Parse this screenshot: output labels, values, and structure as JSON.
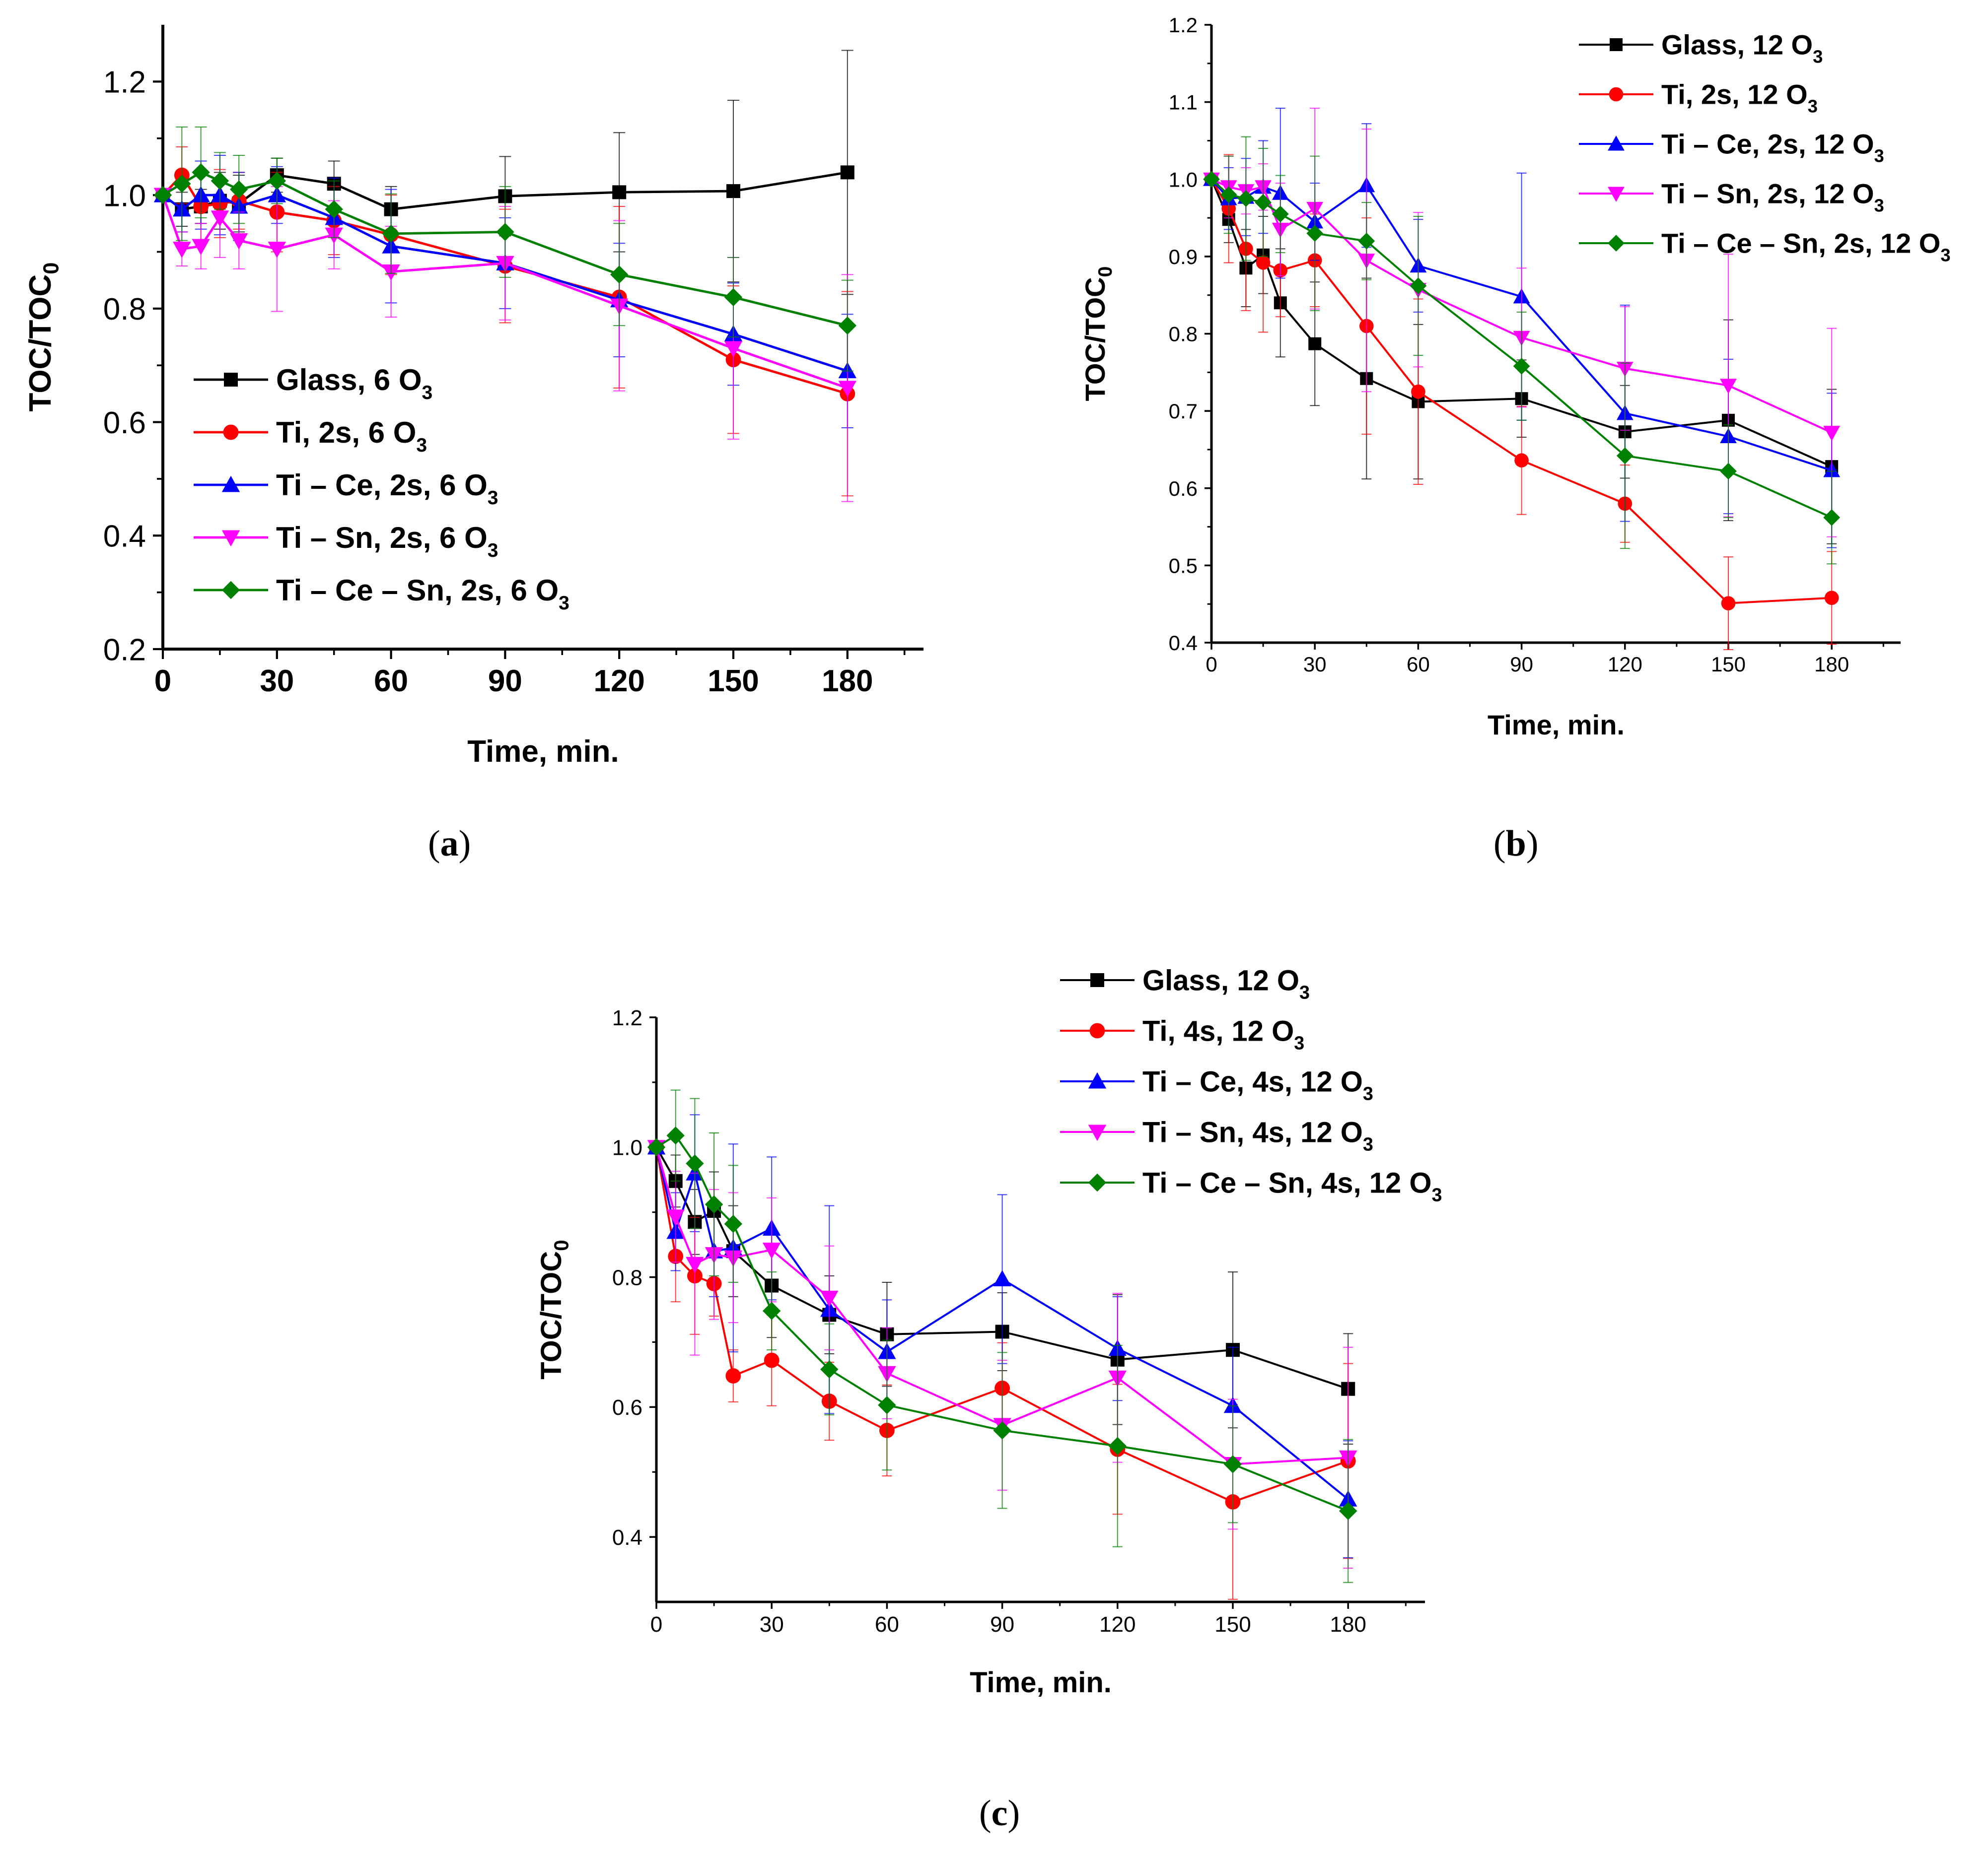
{
  "figure": {
    "captions": [
      {
        "open": "(",
        "letter": "a",
        "close": ")"
      },
      {
        "open": "(",
        "letter": "b",
        "close": ")"
      },
      {
        "open": "(",
        "letter": "c",
        "close": ")"
      }
    ]
  },
  "colors": {
    "black": "#000000",
    "red": "#ff0000",
    "blue": "#0000ff",
    "magenta": "#ff00ff",
    "green": "#008000",
    "axis": "#000000"
  },
  "chart_data": [
    {
      "id": "a",
      "type": "line",
      "xlabel": "Time, min.",
      "ylabel_main": "TOC/TOC",
      "ylabel_sub": "0",
      "xlim": [
        0,
        200
      ],
      "ylim": [
        0.2,
        1.3
      ],
      "xticks": [
        "0",
        "30",
        "60",
        "90",
        "120",
        "150",
        "180"
      ],
      "yticks": [
        "0.2",
        "0.4",
        "0.6",
        "0.8",
        "1.0",
        "1.2"
      ],
      "legend_position": "lower-left",
      "series": [
        {
          "name": "Glass, 6 O",
          "sub": "3",
          "color": "#000000",
          "marker": "square",
          "x": [
            0,
            5,
            10,
            15,
            20,
            30,
            45,
            60,
            90,
            120,
            150,
            180
          ],
          "y": [
            1.0,
            0.975,
            0.98,
            0.99,
            0.985,
            1.035,
            1.02,
            0.975,
            0.998,
            1.005,
            1.007,
            1.04
          ],
          "err": [
            0.0,
            0.03,
            0.03,
            0.05,
            0.05,
            0.03,
            0.04,
            0.04,
            0.07,
            0.105,
            0.16,
            0.215
          ]
        },
        {
          "name": "Ti, 2s, 6 O",
          "sub": "3",
          "color": "#ff0000",
          "marker": "circle",
          "x": [
            0,
            5,
            10,
            15,
            20,
            30,
            45,
            60,
            90,
            120,
            150,
            180
          ],
          "y": [
            1.0,
            1.035,
            0.98,
            0.985,
            0.99,
            0.97,
            0.955,
            0.93,
            0.875,
            0.82,
            0.71,
            0.65
          ],
          "err": [
            0.0,
            0.05,
            0.06,
            0.06,
            0.05,
            0.07,
            0.06,
            0.07,
            0.1,
            0.16,
            0.13,
            0.18
          ]
        },
        {
          "name": "Ti – Ce, 2s, 6 O",
          "sub": "3",
          "color": "#0000ff",
          "marker": "triangle-up",
          "x": [
            0,
            5,
            10,
            15,
            20,
            30,
            45,
            60,
            90,
            120,
            150,
            180
          ],
          "y": [
            1.0,
            0.975,
            1.0,
            1.0,
            0.98,
            1.0,
            0.96,
            0.91,
            0.88,
            0.815,
            0.755,
            0.69
          ],
          "err": [
            0.0,
            0.04,
            0.06,
            0.07,
            0.06,
            0.05,
            0.07,
            0.1,
            0.08,
            0.1,
            0.09,
            0.1
          ]
        },
        {
          "name": "Ti – Sn, 2s, 6 O",
          "sub": "3",
          "color": "#ff00ff",
          "marker": "triangle-down",
          "x": [
            0,
            5,
            10,
            15,
            20,
            30,
            45,
            60,
            90,
            120,
            150,
            180
          ],
          "y": [
            1.0,
            0.905,
            0.91,
            0.96,
            0.92,
            0.905,
            0.93,
            0.865,
            0.88,
            0.805,
            0.73,
            0.66
          ],
          "err": [
            0.0,
            0.03,
            0.04,
            0.07,
            0.05,
            0.11,
            0.06,
            0.08,
            0.1,
            0.15,
            0.16,
            0.2
          ]
        },
        {
          "name": "Ti – Ce – Sn, 2s, 6 O",
          "sub": "3",
          "color": "#008000",
          "marker": "diamond",
          "x": [
            0,
            5,
            10,
            15,
            20,
            30,
            45,
            60,
            90,
            120,
            150,
            180
          ],
          "y": [
            1.0,
            1.02,
            1.04,
            1.025,
            1.01,
            1.025,
            0.975,
            0.932,
            0.935,
            0.86,
            0.82,
            0.77
          ],
          "err": [
            0.0,
            0.1,
            0.08,
            0.05,
            0.06,
            0.04,
            0.05,
            0.07,
            0.08,
            0.09,
            0.07,
            0.08
          ]
        }
      ]
    },
    {
      "id": "b",
      "type": "line",
      "xlabel": "Time, min.",
      "ylabel_main": "TOC/TOC",
      "ylabel_sub": "0",
      "xlim": [
        0,
        200
      ],
      "ylim": [
        0.4,
        1.2
      ],
      "xticks": [
        "0",
        "30",
        "60",
        "90",
        "120",
        "150",
        "180"
      ],
      "yticks": [
        "0.4",
        "0.5",
        "0.6",
        "0.7",
        "0.8",
        "0.9",
        "1.0",
        "1.1",
        "1.2"
      ],
      "legend_position": "top-right, outside",
      "series": [
        {
          "name": "Glass, 12 O",
          "sub": "3",
          "color": "#000000",
          "marker": "square",
          "x": [
            0,
            5,
            10,
            15,
            20,
            30,
            45,
            60,
            90,
            120,
            150,
            180
          ],
          "y": [
            1.0,
            0.948,
            0.885,
            0.902,
            0.84,
            0.787,
            0.742,
            0.712,
            0.716,
            0.673,
            0.688,
            0.628
          ],
          "err": [
            0.0,
            0.03,
            0.05,
            0.05,
            0.07,
            0.08,
            0.13,
            0.1,
            0.05,
            0.06,
            0.13,
            0.1
          ]
        },
        {
          "name": "Ti, 2s, 12 O",
          "sub": "3",
          "color": "#ff0000",
          "marker": "circle",
          "x": [
            0,
            5,
            10,
            15,
            20,
            30,
            45,
            60,
            90,
            120,
            150,
            180
          ],
          "y": [
            1.0,
            0.962,
            0.91,
            0.892,
            0.882,
            0.895,
            0.81,
            0.725,
            0.636,
            0.58,
            0.451,
            0.458
          ],
          "err": [
            0.0,
            0.07,
            0.08,
            0.09,
            0.06,
            0.06,
            0.14,
            0.12,
            0.07,
            0.05,
            0.06,
            0.06
          ]
        },
        {
          "name": "Ti – Ce, 2s, 12 O",
          "sub": "3",
          "color": "#0000ff",
          "marker": "triangle-up",
          "x": [
            0,
            5,
            10,
            15,
            20,
            30,
            45,
            60,
            90,
            120,
            150,
            180
          ],
          "y": [
            1.0,
            0.975,
            0.977,
            0.99,
            0.982,
            0.945,
            0.992,
            0.888,
            0.848,
            0.697,
            0.667,
            0.623
          ],
          "err": [
            0.0,
            0.04,
            0.05,
            0.06,
            0.11,
            0.05,
            0.08,
            0.06,
            0.16,
            0.14,
            0.1,
            0.1
          ]
        },
        {
          "name": "Ti – Sn, 2s, 12 O",
          "sub": "3",
          "color": "#ff00ff",
          "marker": "triangle-down",
          "x": [
            0,
            5,
            10,
            15,
            20,
            30,
            45,
            60,
            90,
            120,
            150,
            180
          ],
          "y": [
            1.0,
            0.99,
            0.985,
            0.99,
            0.935,
            0.962,
            0.895,
            0.857,
            0.795,
            0.755,
            0.733,
            0.672
          ],
          "err": [
            0.0,
            0.04,
            0.03,
            0.03,
            0.06,
            0.13,
            0.17,
            0.1,
            0.09,
            0.08,
            0.17,
            0.135
          ]
        },
        {
          "name": "Ti – Ce – Sn, 2s, 12 O",
          "sub": "3",
          "color": "#008000",
          "marker": "diamond",
          "x": [
            0,
            5,
            10,
            15,
            20,
            30,
            45,
            60,
            90,
            120,
            150,
            180
          ],
          "y": [
            1.0,
            0.98,
            0.975,
            0.97,
            0.955,
            0.93,
            0.92,
            0.862,
            0.758,
            0.642,
            0.622,
            0.562
          ],
          "err": [
            0.0,
            0.05,
            0.08,
            0.07,
            0.05,
            0.1,
            0.05,
            0.09,
            0.07,
            0.12,
            0.06,
            0.06
          ]
        }
      ]
    },
    {
      "id": "c",
      "type": "line",
      "xlabel": "Time, min.",
      "ylabel_main": "TOC/TOC",
      "ylabel_sub": "0",
      "xlim": [
        0,
        200
      ],
      "ylim": [
        0.3,
        1.2
      ],
      "xticks": [
        "0",
        "30",
        "60",
        "90",
        "120",
        "150",
        "180"
      ],
      "yticks": [
        "0.4",
        "0.6",
        "0.8",
        "1.0",
        "1.2"
      ],
      "legend_position": "top-right, outside",
      "series": [
        {
          "name": "Glass, 12 O",
          "sub": "3",
          "color": "#000000",
          "marker": "square",
          "x": [
            0,
            5,
            10,
            15,
            20,
            30,
            45,
            60,
            90,
            120,
            150,
            180
          ],
          "y": [
            1.0,
            0.948,
            0.885,
            0.902,
            0.84,
            0.787,
            0.742,
            0.712,
            0.716,
            0.673,
            0.688,
            0.628
          ],
          "err": [
            0.0,
            0.04,
            0.05,
            0.06,
            0.07,
            0.08,
            0.06,
            0.08,
            0.06,
            0.1,
            0.12,
            0.085
          ]
        },
        {
          "name": "Ti, 4s, 12 O",
          "sub": "3",
          "color": "#ff0000",
          "marker": "circle",
          "x": [
            0,
            5,
            10,
            15,
            20,
            30,
            45,
            60,
            90,
            120,
            150,
            180
          ],
          "y": [
            1.0,
            0.832,
            0.802,
            0.79,
            0.648,
            0.672,
            0.609,
            0.564,
            0.629,
            0.535,
            0.454,
            0.517
          ],
          "err": [
            0.0,
            0.07,
            0.09,
            0.05,
            0.04,
            0.07,
            0.06,
            0.07,
            0.07,
            0.1,
            0.15,
            0.15
          ]
        },
        {
          "name": "Ti – Ce, 4s, 12 O",
          "sub": "3",
          "color": "#0000ff",
          "marker": "triangle-up",
          "x": [
            0,
            5,
            10,
            15,
            20,
            30,
            45,
            60,
            90,
            120,
            150,
            180
          ],
          "y": [
            1.0,
            0.87,
            0.96,
            0.84,
            0.845,
            0.875,
            0.75,
            0.685,
            0.797,
            0.69,
            0.602,
            0.458
          ],
          "err": [
            0.0,
            0.06,
            0.09,
            0.07,
            0.16,
            0.11,
            0.16,
            0.08,
            0.13,
            0.08,
            0.09,
            0.09
          ]
        },
        {
          "name": "Ti – Sn, 4s, 12 O",
          "sub": "3",
          "color": "#ff00ff",
          "marker": "triangle-down",
          "x": [
            0,
            5,
            10,
            15,
            20,
            30,
            45,
            60,
            90,
            120,
            150,
            180
          ],
          "y": [
            1.0,
            0.893,
            0.82,
            0.835,
            0.83,
            0.842,
            0.768,
            0.652,
            0.572,
            0.645,
            0.512,
            0.522
          ],
          "err": [
            0.0,
            0.07,
            0.14,
            0.1,
            0.1,
            0.08,
            0.08,
            0.07,
            0.1,
            0.13,
            0.1,
            0.17
          ]
        },
        {
          "name": "Ti – Ce – Sn, 4s, 12 O",
          "sub": "3",
          "color": "#008000",
          "marker": "diamond",
          "x": [
            0,
            5,
            10,
            15,
            20,
            30,
            45,
            60,
            90,
            120,
            150,
            180
          ],
          "y": [
            1.0,
            1.018,
            0.975,
            0.912,
            0.882,
            0.748,
            0.658,
            0.603,
            0.564,
            0.54,
            0.512,
            0.44
          ],
          "err": [
            0.0,
            0.07,
            0.1,
            0.11,
            0.09,
            0.06,
            0.07,
            0.1,
            0.12,
            0.155,
            0.09,
            0.11
          ]
        }
      ]
    }
  ]
}
